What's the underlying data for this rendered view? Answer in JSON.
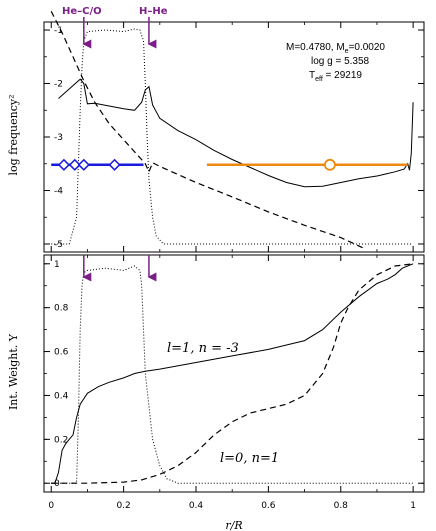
{
  "chart_data": [
    {
      "type": "line",
      "panel": "top",
      "ylabel": "log frequency²",
      "ylim": [
        -5.15,
        -0.85
      ],
      "xlim": [
        -0.02,
        1.03
      ],
      "yticks": [
        -1,
        -2,
        -3,
        -4,
        -5
      ],
      "ytick_labels": [
        "-1",
        "-2",
        "-3",
        "-4",
        "-5"
      ],
      "markers": [
        {
          "label": "He–C/O",
          "x": 0.09
        },
        {
          "label": "H–He",
          "x": 0.27
        }
      ],
      "info": {
        "line1": "M=0.4780, M",
        "line1_sub": "e",
        "line1_end": "=0.0020",
        "line2": "log g = 5.358",
        "line3": "T",
        "line3_sub": "eff",
        "line3_end": " = 29219"
      },
      "series": [
        {
          "style": "solid",
          "points": [
            [
              0.02,
              -2.28
            ],
            [
              0.05,
              -2.1
            ],
            [
              0.08,
              -1.92
            ],
            [
              0.09,
              -2.0
            ],
            [
              0.1,
              -2.38
            ],
            [
              0.12,
              -2.37
            ],
            [
              0.16,
              -2.42
            ],
            [
              0.2,
              -2.47
            ],
            [
              0.23,
              -2.5
            ],
            [
              0.25,
              -2.35
            ],
            [
              0.26,
              -2.12
            ],
            [
              0.27,
              -2.06
            ],
            [
              0.28,
              -2.4
            ],
            [
              0.3,
              -2.65
            ],
            [
              0.35,
              -2.88
            ],
            [
              0.4,
              -3.05
            ],
            [
              0.45,
              -3.25
            ],
            [
              0.5,
              -3.42
            ],
            [
              0.55,
              -3.57
            ],
            [
              0.6,
              -3.72
            ],
            [
              0.65,
              -3.85
            ],
            [
              0.7,
              -3.93
            ],
            [
              0.75,
              -3.92
            ],
            [
              0.8,
              -3.85
            ],
            [
              0.85,
              -3.78
            ],
            [
              0.9,
              -3.73
            ],
            [
              0.95,
              -3.65
            ],
            [
              0.975,
              -3.6
            ],
            [
              0.985,
              -3.5
            ],
            [
              0.99,
              -3.62
            ],
            [
              0.995,
              -3.3
            ],
            [
              1.0,
              -2.35
            ]
          ]
        },
        {
          "style": "dashed",
          "points": [
            [
              0.0,
              -0.65
            ],
            [
              0.03,
              -1.05
            ],
            [
              0.06,
              -1.5
            ],
            [
              0.09,
              -1.95
            ],
            [
              0.12,
              -2.35
            ],
            [
              0.16,
              -2.75
            ],
            [
              0.2,
              -3.05
            ],
            [
              0.24,
              -3.35
            ],
            [
              0.26,
              -3.5
            ],
            [
              0.27,
              -3.65
            ],
            [
              0.28,
              -3.48
            ],
            [
              0.3,
              -3.55
            ],
            [
              0.4,
              -3.85
            ],
            [
              0.5,
              -4.12
            ],
            [
              0.6,
              -4.4
            ],
            [
              0.7,
              -4.65
            ],
            [
              0.8,
              -4.88
            ],
            [
              0.87,
              -5.1
            ]
          ]
        },
        {
          "style": "dotted",
          "points": [
            [
              0.0,
              -5.0
            ],
            [
              0.05,
              -5.0
            ],
            [
              0.07,
              -4.5
            ],
            [
              0.075,
              -3.5
            ],
            [
              0.08,
              -2.5
            ],
            [
              0.085,
              -1.7
            ],
            [
              0.09,
              -1.2
            ],
            [
              0.1,
              -1.03
            ],
            [
              0.15,
              -1.0
            ],
            [
              0.2,
              -1.03
            ],
            [
              0.23,
              -0.98
            ],
            [
              0.245,
              -1.0
            ],
            [
              0.255,
              -1.2
            ],
            [
              0.26,
              -2.0
            ],
            [
              0.265,
              -3.0
            ],
            [
              0.27,
              -3.8
            ],
            [
              0.28,
              -4.5
            ],
            [
              0.29,
              -4.85
            ],
            [
              0.31,
              -5.0
            ],
            [
              1.0,
              -5.0
            ]
          ]
        },
        {
          "style": "blue-band",
          "color": "#1a1adc",
          "points": [
            [
              0.0,
              -3.52
            ],
            [
              0.255,
              -3.52
            ]
          ],
          "diamonds": [
            0.035,
            0.065,
            0.09,
            0.175
          ]
        },
        {
          "style": "orange-band",
          "color": "#ee8a12",
          "points": [
            [
              0.43,
              -3.52
            ],
            [
              0.985,
              -3.52
            ]
          ],
          "circle": 0.77
        }
      ]
    },
    {
      "type": "line",
      "panel": "bottom",
      "ylabel": "Int. Weight. Y",
      "xlabel": "r/R",
      "xlim": [
        -0.02,
        1.03
      ],
      "ylim": [
        -0.04,
        1.04
      ],
      "yticks": [
        0,
        0.2,
        0.4,
        0.6,
        0.8,
        1
      ],
      "ytick_labels": [
        "0",
        "0.2",
        "0.4",
        "0.6",
        "0.8",
        "1"
      ],
      "xticks": [
        0,
        0.2,
        0.4,
        0.6,
        0.8,
        1
      ],
      "xtick_labels": [
        "0",
        "0.2",
        "0.4",
        "0.6",
        "0.8",
        "1"
      ],
      "markers": [
        {
          "x": 0.09
        },
        {
          "x": 0.27
        }
      ],
      "labels": [
        {
          "text": "l=1, n = -3",
          "x": 0.34,
          "y": 0.59
        },
        {
          "text": "l=0, n=1",
          "x": 0.48,
          "y": 0.12
        }
      ],
      "series": [
        {
          "style": "solid",
          "name": "l=1, n = -3",
          "points": [
            [
              0.0,
              0.0
            ],
            [
              0.01,
              0.0
            ],
            [
              0.02,
              0.05
            ],
            [
              0.03,
              0.15
            ],
            [
              0.04,
              0.18
            ],
            [
              0.05,
              0.2
            ],
            [
              0.06,
              0.22
            ],
            [
              0.07,
              0.3
            ],
            [
              0.08,
              0.36
            ],
            [
              0.1,
              0.41
            ],
            [
              0.13,
              0.44
            ],
            [
              0.16,
              0.46
            ],
            [
              0.2,
              0.48
            ],
            [
              0.23,
              0.5
            ],
            [
              0.26,
              0.51
            ],
            [
              0.3,
              0.52
            ],
            [
              0.4,
              0.55
            ],
            [
              0.5,
              0.58
            ],
            [
              0.6,
              0.61
            ],
            [
              0.65,
              0.63
            ],
            [
              0.7,
              0.65
            ],
            [
              0.75,
              0.7
            ],
            [
              0.8,
              0.78
            ],
            [
              0.85,
              0.85
            ],
            [
              0.9,
              0.91
            ],
            [
              0.93,
              0.93
            ],
            [
              0.95,
              0.95
            ],
            [
              0.97,
              0.98
            ],
            [
              1.0,
              1.0
            ]
          ]
        },
        {
          "style": "dashed",
          "name": "l=0, n=1",
          "points": [
            [
              0.0,
              0.0
            ],
            [
              0.1,
              0.0
            ],
            [
              0.2,
              0.005
            ],
            [
              0.25,
              0.015
            ],
            [
              0.3,
              0.04
            ],
            [
              0.35,
              0.08
            ],
            [
              0.4,
              0.14
            ],
            [
              0.45,
              0.22
            ],
            [
              0.5,
              0.28
            ],
            [
              0.55,
              0.32
            ],
            [
              0.6,
              0.34
            ],
            [
              0.65,
              0.36
            ],
            [
              0.7,
              0.4
            ],
            [
              0.75,
              0.5
            ],
            [
              0.78,
              0.62
            ],
            [
              0.8,
              0.73
            ],
            [
              0.82,
              0.8
            ],
            [
              0.85,
              0.88
            ],
            [
              0.9,
              0.95
            ],
            [
              0.95,
              0.99
            ],
            [
              1.0,
              1.0
            ]
          ]
        },
        {
          "style": "dotted",
          "points": [
            [
              0.0,
              0.0
            ],
            [
              0.07,
              0.0
            ],
            [
              0.075,
              0.3
            ],
            [
              0.08,
              0.7
            ],
            [
              0.085,
              0.9
            ],
            [
              0.09,
              0.96
            ],
            [
              0.1,
              0.97
            ],
            [
              0.15,
              0.98
            ],
            [
              0.2,
              0.97
            ],
            [
              0.23,
              0.99
            ],
            [
              0.245,
              0.97
            ],
            [
              0.25,
              0.9
            ],
            [
              0.255,
              0.7
            ],
            [
              0.26,
              0.5
            ],
            [
              0.27,
              0.35
            ],
            [
              0.28,
              0.2
            ],
            [
              0.3,
              0.08
            ],
            [
              0.32,
              0.02
            ],
            [
              0.35,
              0.0
            ],
            [
              1.0,
              0.0
            ]
          ]
        }
      ]
    }
  ]
}
